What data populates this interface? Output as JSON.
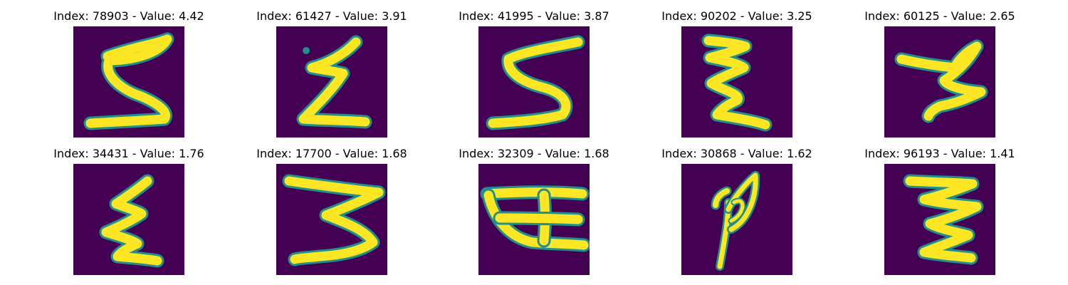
{
  "colors": {
    "image_background": "#440154",
    "stroke_edge": "#21908d",
    "stroke_core": "#fde725"
  },
  "panels": [
    {
      "title": "Index: 78903 - Value: 4.42"
    },
    {
      "title": "Index: 61427 - Value: 3.91"
    },
    {
      "title": "Index: 41995 - Value: 3.87"
    },
    {
      "title": "Index: 90202 - Value: 3.25"
    },
    {
      "title": "Index: 60125 - Value: 2.65"
    },
    {
      "title": "Index: 34431 - Value: 1.76"
    },
    {
      "title": "Index: 17700 - Value: 1.68"
    },
    {
      "title": "Index: 32309 - Value: 1.68"
    },
    {
      "title": "Index: 30868 - Value: 1.62"
    },
    {
      "title": "Index: 96193 - Value: 1.41"
    }
  ]
}
